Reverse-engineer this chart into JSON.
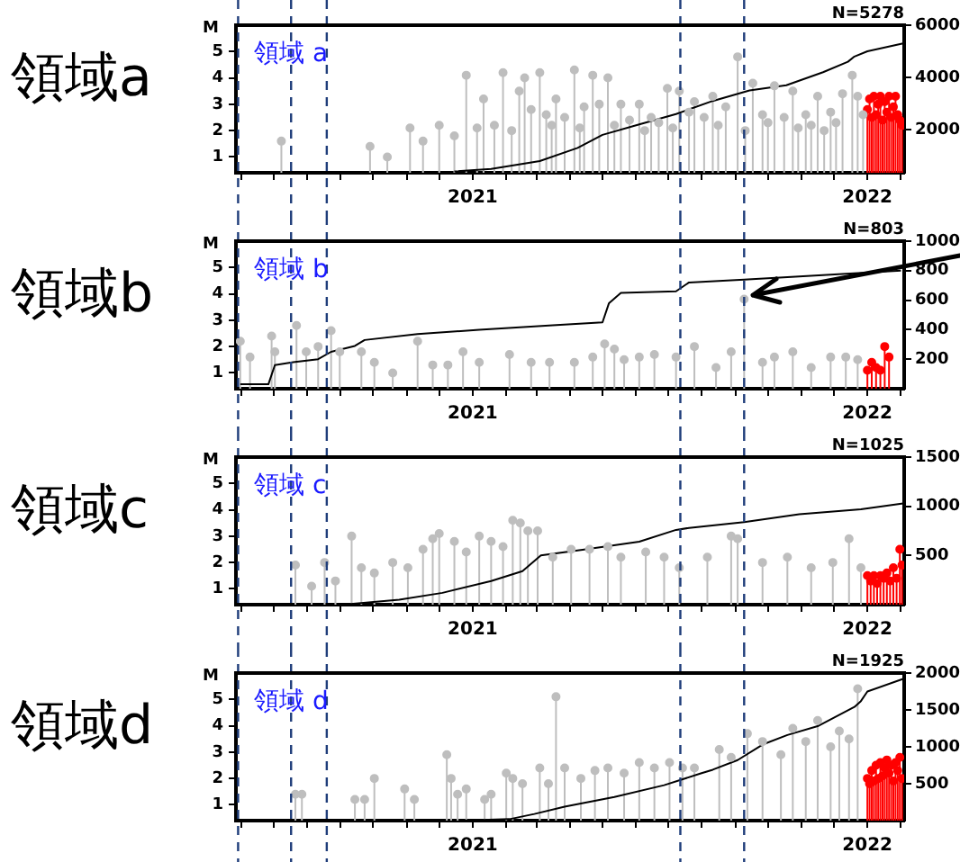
{
  "chart_data": [
    {
      "type": "lollipop",
      "title": "領域a",
      "ylabel": "M",
      "annotations": [
        "領域 a",
        "N=5278"
      ],
      "marker": "circle",
      "xlim": [
        "2020-05-27",
        "2022-02-04"
      ],
      "xticks": [
        {
          "value": "2020-06",
          "label": null
        },
        {
          "value": "2020-07",
          "label": null
        },
        {
          "value": "2020-08",
          "label": null
        },
        {
          "value": "2020-09",
          "label": null
        },
        {
          "value": "2020-10",
          "label": null
        },
        {
          "value": "2020-11",
          "label": null
        },
        {
          "value": "2020-12",
          "label": null
        },
        "2021",
        {
          "value": "2021-02",
          "label": null
        },
        {
          "value": "2021-03",
          "label": null
        },
        {
          "value": "2021-04",
          "label": null
        },
        {
          "value": "2021-05",
          "label": null
        },
        {
          "value": "2021-06",
          "label": null
        },
        {
          "value": "2021-07",
          "label": null
        },
        {
          "value": "2021-08",
          "label": null
        },
        {
          "value": "2021-09",
          "label": null
        },
        {
          "value": "2021-10",
          "label": null
        },
        {
          "value": "2021-11",
          "label": null
        },
        {
          "value": "2021-12",
          "label": null
        },
        "2022",
        {
          "value": "2022-02",
          "label": null
        }
      ],
      "ylim": [
        0.4,
        6
      ],
      "yticks": [
        1,
        2,
        3,
        4,
        5
      ],
      "y2lim": [
        350,
        6000
      ],
      "y2ticks": [
        2000,
        4000,
        6000
      ],
      "ref_lines": [
        {
          "axis": "x",
          "value": "2020-05-29",
          "color": "#1f3d7a",
          "line_style": "dashed"
        },
        {
          "axis": "x",
          "value": "2020-07-17",
          "color": "#1f3d7a",
          "line_style": "dashed"
        },
        {
          "axis": "x",
          "value": "2020-08-19",
          "color": "#1f3d7a",
          "line_style": "dashed"
        },
        {
          "axis": "x",
          "value": "2021-07-12",
          "color": "#1f3d7a",
          "line_style": "dashed"
        },
        {
          "axis": "x",
          "value": "2021-09-09",
          "color": "#1f3d7a",
          "line_style": "dashed"
        }
      ],
      "series": [
        {
          "color": "#bebebe",
          "x": [
            "2020-07-08",
            "2020-09-28",
            "2020-10-14",
            "2020-11-04",
            "2020-11-16",
            "2020-12-01",
            "2020-12-15",
            "2020-12-26",
            "2021-01-05",
            "2021-01-11",
            "2021-01-21",
            "2021-01-29",
            "2021-02-06",
            "2021-02-13",
            "2021-02-18",
            "2021-02-24",
            "2021-03-04",
            "2021-03-10",
            "2021-03-15",
            "2021-03-19",
            "2021-03-27",
            "2021-04-05",
            "2021-04-10",
            "2021-04-14",
            "2021-04-22",
            "2021-04-28",
            "2021-05-06",
            "2021-05-12",
            "2021-05-18",
            "2021-05-26",
            "2021-06-04",
            "2021-06-09",
            "2021-06-15",
            "2021-06-22",
            "2021-06-30",
            "2021-07-05",
            "2021-07-11",
            "2021-07-20",
            "2021-07-25",
            "2021-08-03",
            "2021-08-11",
            "2021-08-16",
            "2021-08-23",
            "2021-09-03",
            "2021-09-10",
            "2021-09-17",
            "2021-09-26",
            "2021-10-01",
            "2021-10-07",
            "2021-10-16",
            "2021-10-24",
            "2021-10-29",
            "2021-11-05",
            "2021-11-10",
            "2021-11-16",
            "2021-11-22",
            "2021-11-28",
            "2021-12-03",
            "2021-12-09",
            "2021-12-18",
            "2021-12-23",
            "2021-12-28"
          ],
          "values": [
            1.6,
            1.4,
            1.0,
            2.1,
            1.6,
            2.2,
            1.8,
            4.1,
            2.1,
            3.2,
            2.2,
            4.2,
            2.0,
            3.5,
            4.0,
            2.8,
            4.2,
            2.6,
            2.2,
            3.2,
            2.5,
            4.3,
            2.1,
            2.9,
            4.1,
            3.0,
            4.0,
            2.2,
            3.0,
            2.4,
            3.0,
            2.0,
            2.5,
            2.3,
            3.6,
            2.1,
            3.5,
            2.7,
            3.1,
            2.5,
            3.3,
            2.2,
            2.9,
            4.8,
            2.0,
            3.8,
            2.6,
            2.3,
            3.7,
            2.5,
            3.5,
            2.1,
            2.6,
            2.2,
            3.3,
            2.0,
            2.7,
            2.3,
            3.4,
            4.1,
            3.3,
            2.6
          ]
        },
        {
          "color": "#ff0000",
          "x": [
            "2022-01-01",
            "2022-01-03",
            "2022-01-05",
            "2022-01-07",
            "2022-01-09",
            "2022-01-11",
            "2022-01-13",
            "2022-01-15",
            "2022-01-17",
            "2022-01-19",
            "2022-01-21",
            "2022-01-23",
            "2022-01-25",
            "2022-01-27",
            "2022-01-29",
            "2022-01-31",
            "2022-02-02"
          ],
          "values": [
            2.8,
            3.2,
            2.5,
            3.3,
            2.6,
            3.0,
            3.3,
            2.4,
            3.1,
            2.7,
            3.3,
            2.5,
            2.9,
            3.3,
            2.6,
            2.4,
            2.2
          ]
        },
        {
          "type": "line",
          "axis": "y2",
          "color": "#000000",
          "marker": "none",
          "x": [
            "2020-12-15",
            "2021-01-18",
            "2021-03-04",
            "2021-04-08",
            "2021-05-01",
            "2021-06-04",
            "2021-07-08",
            "2021-08-11",
            "2021-09-14",
            "2021-10-18",
            "2021-11-21",
            "2021-12-14",
            "2021-12-20",
            "2022-01-01",
            "2022-02-03"
          ],
          "values": [
            400,
            500,
            800,
            1300,
            1800,
            2200,
            2600,
            3100,
            3500,
            3700,
            4200,
            4600,
            4800,
            5000,
            5300
          ]
        }
      ]
    },
    {
      "type": "lollipop",
      "title": "領域b",
      "ylabel": "M",
      "annotations": [
        "領域 b",
        "N=803"
      ],
      "marker": "circle",
      "xlim": [
        "2020-05-27",
        "2022-02-04"
      ],
      "xticks": [
        {
          "value": "2020-06",
          "label": null
        },
        {
          "value": "2020-07",
          "label": null
        },
        {
          "value": "2020-08",
          "label": null
        },
        {
          "value": "2020-09",
          "label": null
        },
        {
          "value": "2020-10",
          "label": null
        },
        {
          "value": "2020-11",
          "label": null
        },
        {
          "value": "2020-12",
          "label": null
        },
        "2021",
        {
          "value": "2021-02",
          "label": null
        },
        {
          "value": "2021-03",
          "label": null
        },
        {
          "value": "2021-04",
          "label": null
        },
        {
          "value": "2021-05",
          "label": null
        },
        {
          "value": "2021-06",
          "label": null
        },
        {
          "value": "2021-07",
          "label": null
        },
        {
          "value": "2021-08",
          "label": null
        },
        {
          "value": "2021-09",
          "label": null
        },
        {
          "value": "2021-10",
          "label": null
        },
        {
          "value": "2021-11",
          "label": null
        },
        {
          "value": "2021-12",
          "label": null
        },
        "2022",
        {
          "value": "2022-02",
          "label": null
        }
      ],
      "ylim": [
        0.4,
        6
      ],
      "yticks": [
        1,
        2,
        3,
        4,
        5
      ],
      "y2lim": [
        0,
        1000
      ],
      "y2ticks": [
        200,
        400,
        600,
        800,
        1000
      ],
      "ref_lines": [
        {
          "axis": "x",
          "value": "2020-05-29",
          "color": "#1f3d7a",
          "line_style": "dashed"
        },
        {
          "axis": "x",
          "value": "2020-07-17",
          "color": "#1f3d7a",
          "line_style": "dashed"
        },
        {
          "axis": "x",
          "value": "2020-08-19",
          "color": "#1f3d7a",
          "line_style": "dashed"
        },
        {
          "axis": "x",
          "value": "2021-07-12",
          "color": "#1f3d7a",
          "line_style": "dashed"
        },
        {
          "axis": "x",
          "value": "2021-09-09",
          "color": "#1f3d7a",
          "line_style": "dashed"
        }
      ],
      "series": [
        {
          "color": "#bebebe",
          "x": [
            "2020-05-31",
            "2020-06-09",
            "2020-06-29",
            "2020-07-02",
            "2020-07-22",
            "2020-07-31",
            "2020-08-11",
            "2020-08-23",
            "2020-08-31",
            "2020-09-20",
            "2020-10-02",
            "2020-10-19",
            "2020-11-11",
            "2020-11-25",
            "2020-12-09",
            "2020-12-23",
            "2021-01-07",
            "2021-02-04",
            "2021-02-24",
            "2021-03-13",
            "2021-04-05",
            "2021-04-22",
            "2021-05-03",
            "2021-05-12",
            "2021-05-21",
            "2021-06-04",
            "2021-06-18",
            "2021-07-08",
            "2021-07-25",
            "2021-08-14",
            "2021-08-28",
            "2021-09-09",
            "2021-09-26",
            "2021-10-07",
            "2021-10-24",
            "2021-11-10",
            "2021-11-28",
            "2021-12-12",
            "2021-12-23"
          ],
          "values": [
            2.2,
            1.6,
            2.4,
            1.8,
            2.8,
            1.8,
            2.0,
            2.6,
            1.8,
            1.8,
            1.4,
            1.0,
            2.2,
            1.3,
            1.3,
            1.8,
            1.4,
            1.7,
            1.4,
            1.4,
            1.4,
            1.6,
            2.1,
            1.9,
            1.5,
            1.6,
            1.7,
            1.6,
            2.0,
            1.2,
            1.8,
            3.8,
            1.4,
            1.6,
            1.8,
            1.2,
            1.6,
            1.6,
            1.5
          ]
        },
        {
          "color": "#ff0000",
          "x": [
            "2022-01-01",
            "2022-01-05",
            "2022-01-09",
            "2022-01-13",
            "2022-01-17",
            "2022-01-21"
          ],
          "values": [
            1.1,
            1.4,
            1.2,
            1.1,
            2.0,
            1.6
          ]
        },
        {
          "type": "line",
          "axis": "y2",
          "color": "#000000",
          "marker": "none",
          "x": [
            "2020-05-31",
            "2020-06-26",
            "2020-07-02",
            "2020-07-19",
            "2020-08-11",
            "2020-08-23",
            "2020-09-14",
            "2020-09-23",
            "2020-11-11",
            "2021-01-07",
            "2021-03-16",
            "2021-05-01",
            "2021-05-07",
            "2021-05-18",
            "2021-07-08",
            "2021-07-20",
            "2021-09-09",
            "2021-10-30",
            "2022-02-01"
          ],
          "values": [
            30,
            30,
            160,
            180,
            200,
            250,
            290,
            330,
            370,
            400,
            430,
            450,
            580,
            650,
            660,
            720,
            740,
            760,
            800
          ]
        }
      ]
    },
    {
      "type": "lollipop",
      "title": "領域c",
      "ylabel": "M",
      "annotations": [
        "領域 c",
        "N=1025"
      ],
      "marker": "circle",
      "xlim": [
        "2020-05-27",
        "2022-02-04"
      ],
      "xticks": [
        {
          "value": "2020-06",
          "label": null
        },
        {
          "value": "2020-07",
          "label": null
        },
        {
          "value": "2020-08",
          "label": null
        },
        {
          "value": "2020-09",
          "label": null
        },
        {
          "value": "2020-10",
          "label": null
        },
        {
          "value": "2020-11",
          "label": null
        },
        {
          "value": "2020-12",
          "label": null
        },
        "2021",
        {
          "value": "2021-02",
          "label": null
        },
        {
          "value": "2021-03",
          "label": null
        },
        {
          "value": "2021-04",
          "label": null
        },
        {
          "value": "2021-05",
          "label": null
        },
        {
          "value": "2021-06",
          "label": null
        },
        {
          "value": "2021-07",
          "label": null
        },
        {
          "value": "2021-08",
          "label": null
        },
        {
          "value": "2021-09",
          "label": null
        },
        {
          "value": "2021-10",
          "label": null
        },
        {
          "value": "2021-11",
          "label": null
        },
        {
          "value": "2021-12",
          "label": null
        },
        "2022",
        {
          "value": "2022-02",
          "label": null
        }
      ],
      "ylim": [
        0.4,
        6
      ],
      "yticks": [
        1,
        2,
        3,
        4,
        5
      ],
      "y2lim": [
        0,
        1500
      ],
      "y2ticks": [
        500,
        1000,
        1500
      ],
      "ref_lines": [
        {
          "axis": "x",
          "value": "2020-05-29",
          "color": "#1f3d7a",
          "line_style": "dashed"
        },
        {
          "axis": "x",
          "value": "2020-07-17",
          "color": "#1f3d7a",
          "line_style": "dashed"
        },
        {
          "axis": "x",
          "value": "2020-08-19",
          "color": "#1f3d7a",
          "line_style": "dashed"
        },
        {
          "axis": "x",
          "value": "2021-07-12",
          "color": "#1f3d7a",
          "line_style": "dashed"
        },
        {
          "axis": "x",
          "value": "2021-09-09",
          "color": "#1f3d7a",
          "line_style": "dashed"
        }
      ],
      "series": [
        {
          "color": "#bebebe",
          "x": [
            "2020-07-21",
            "2020-08-05",
            "2020-08-17",
            "2020-08-27",
            "2020-09-11",
            "2020-09-20",
            "2020-10-02",
            "2020-10-19",
            "2020-11-02",
            "2020-11-16",
            "2020-11-25",
            "2020-12-01",
            "2020-12-15",
            "2020-12-26",
            "2021-01-07",
            "2021-01-18",
            "2021-01-29",
            "2021-02-07",
            "2021-02-14",
            "2021-02-21",
            "2021-03-02",
            "2021-03-16",
            "2021-04-02",
            "2021-04-19",
            "2021-05-06",
            "2021-05-18",
            "2021-06-10",
            "2021-06-27",
            "2021-07-11",
            "2021-08-06",
            "2021-08-28",
            "2021-09-03",
            "2021-09-26",
            "2021-10-19",
            "2021-11-10",
            "2021-11-30",
            "2021-12-15",
            "2021-12-26"
          ],
          "values": [
            1.9,
            1.1,
            2.0,
            1.3,
            3.0,
            1.8,
            1.6,
            2.0,
            1.8,
            2.5,
            2.9,
            3.1,
            2.8,
            2.4,
            3.0,
            2.8,
            2.6,
            3.6,
            3.5,
            3.2,
            3.2,
            2.2,
            2.5,
            2.5,
            2.6,
            2.2,
            2.4,
            2.2,
            1.8,
            2.2,
            3.0,
            2.9,
            2.0,
            2.2,
            1.8,
            2.0,
            2.9,
            1.8
          ]
        },
        {
          "color": "#ff0000",
          "x": [
            "2022-01-01",
            "2022-01-04",
            "2022-01-07",
            "2022-01-10",
            "2022-01-13",
            "2022-01-16",
            "2022-01-19",
            "2022-01-22",
            "2022-01-25",
            "2022-01-28",
            "2022-01-31",
            "2022-02-02"
          ],
          "values": [
            1.5,
            1.3,
            1.5,
            1.2,
            1.5,
            1.4,
            1.6,
            1.3,
            1.8,
            1.4,
            2.5,
            1.9
          ]
        },
        {
          "type": "line",
          "axis": "y2",
          "color": "#000000",
          "marker": "none",
          "x": [
            "2020-09-03",
            "2020-10-25",
            "2020-12-04",
            "2021-01-18",
            "2021-02-16",
            "2021-03-05",
            "2021-04-14",
            "2021-06-04",
            "2021-07-08",
            "2021-07-20",
            "2021-09-09",
            "2021-10-30",
            "2021-12-26",
            "2022-02-03"
          ],
          "values": [
            0,
            50,
            120,
            240,
            340,
            500,
            560,
            640,
            760,
            780,
            840,
            920,
            970,
            1030
          ]
        }
      ]
    },
    {
      "type": "lollipop",
      "title": "領域d",
      "ylabel": "M",
      "annotations": [
        "領域 d",
        "N=1925"
      ],
      "marker": "circle",
      "xlim": [
        "2020-05-27",
        "2022-02-04"
      ],
      "xticks": [
        {
          "value": "2020-06",
          "label": null
        },
        {
          "value": "2020-07",
          "label": null
        },
        {
          "value": "2020-08",
          "label": null
        },
        {
          "value": "2020-09",
          "label": null
        },
        {
          "value": "2020-10",
          "label": null
        },
        {
          "value": "2020-11",
          "label": null
        },
        {
          "value": "2020-12",
          "label": null
        },
        "2021",
        {
          "value": "2021-02",
          "label": null
        },
        {
          "value": "2021-03",
          "label": null
        },
        {
          "value": "2021-04",
          "label": null
        },
        {
          "value": "2021-05",
          "label": null
        },
        {
          "value": "2021-06",
          "label": null
        },
        {
          "value": "2021-07",
          "label": null
        },
        {
          "value": "2021-08",
          "label": null
        },
        {
          "value": "2021-09",
          "label": null
        },
        {
          "value": "2021-10",
          "label": null
        },
        {
          "value": "2021-11",
          "label": null
        },
        {
          "value": "2021-12",
          "label": null
        },
        "2022",
        {
          "value": "2022-02",
          "label": null
        }
      ],
      "ylim": [
        0.4,
        6
      ],
      "yticks": [
        1,
        2,
        3,
        4,
        5
      ],
      "y2lim": [
        0,
        2000
      ],
      "y2ticks": [
        500,
        1000,
        1500,
        2000
      ],
      "ref_lines": [
        {
          "axis": "x",
          "value": "2020-05-29",
          "color": "#1f3d7a",
          "line_style": "dashed"
        },
        {
          "axis": "x",
          "value": "2020-07-17",
          "color": "#1f3d7a",
          "line_style": "dashed"
        },
        {
          "axis": "x",
          "value": "2020-08-19",
          "color": "#1f3d7a",
          "line_style": "dashed"
        },
        {
          "axis": "x",
          "value": "2021-07-12",
          "color": "#1f3d7a",
          "line_style": "dashed"
        },
        {
          "axis": "x",
          "value": "2021-09-09",
          "color": "#1f3d7a",
          "line_style": "dashed"
        }
      ],
      "series": [
        {
          "color": "#bebebe",
          "x": [
            "2020-07-21",
            "2020-07-27",
            "2020-09-14",
            "2020-09-23",
            "2020-10-02",
            "2020-10-30",
            "2020-11-08",
            "2020-12-08",
            "2020-12-12",
            "2020-12-18",
            "2020-12-26",
            "2021-01-12",
            "2021-01-18",
            "2021-02-01",
            "2021-02-07",
            "2021-02-16",
            "2021-03-04",
            "2021-03-12",
            "2021-03-19",
            "2021-03-27",
            "2021-04-11",
            "2021-04-24",
            "2021-05-06",
            "2021-05-21",
            "2021-06-04",
            "2021-06-18",
            "2021-07-02",
            "2021-07-14",
            "2021-07-25",
            "2021-08-17",
            "2021-08-28",
            "2021-09-12",
            "2021-09-26",
            "2021-10-13",
            "2021-10-24",
            "2021-11-05",
            "2021-11-16",
            "2021-11-28",
            "2021-12-06",
            "2021-12-15",
            "2021-12-23"
          ],
          "values": [
            1.4,
            1.4,
            1.2,
            1.2,
            2.0,
            1.6,
            1.2,
            2.9,
            2.0,
            1.4,
            1.6,
            1.2,
            1.4,
            2.2,
            2.0,
            1.8,
            2.4,
            1.8,
            5.1,
            2.4,
            2.0,
            2.3,
            2.4,
            2.2,
            2.6,
            2.4,
            2.6,
            2.4,
            2.4,
            3.1,
            2.8,
            3.7,
            3.4,
            2.9,
            3.9,
            3.4,
            4.2,
            3.2,
            3.8,
            3.5,
            5.4
          ]
        },
        {
          "color": "#ff0000",
          "x": [
            "2022-01-01",
            "2022-01-03",
            "2022-01-05",
            "2022-01-07",
            "2022-01-09",
            "2022-01-11",
            "2022-01-13",
            "2022-01-15",
            "2022-01-17",
            "2022-01-19",
            "2022-01-21",
            "2022-01-23",
            "2022-01-25",
            "2022-01-27",
            "2022-01-29",
            "2022-01-31",
            "2022-02-02"
          ],
          "values": [
            2.0,
            1.8,
            2.3,
            1.9,
            2.5,
            2.0,
            2.6,
            2.1,
            2.4,
            2.7,
            2.2,
            2.5,
            1.9,
            2.6,
            2.3,
            2.8,
            2.0
          ]
        },
        {
          "type": "line",
          "axis": "y2",
          "color": "#000000",
          "marker": "none",
          "x": [
            "2020-12-21",
            "2021-02-04",
            "2021-02-27",
            "2021-03-27",
            "2021-05-12",
            "2021-06-27",
            "2021-07-31",
            "2021-08-11",
            "2021-09-03",
            "2021-09-26",
            "2021-10-19",
            "2021-11-16",
            "2021-12-20",
            "2021-12-26",
            "2022-01-01",
            "2022-02-03"
          ],
          "values": [
            0,
            20,
            90,
            190,
            320,
            480,
            640,
            690,
            820,
            1030,
            1160,
            1280,
            1540,
            1620,
            1750,
            1920
          ]
        }
      ]
    }
  ]
}
